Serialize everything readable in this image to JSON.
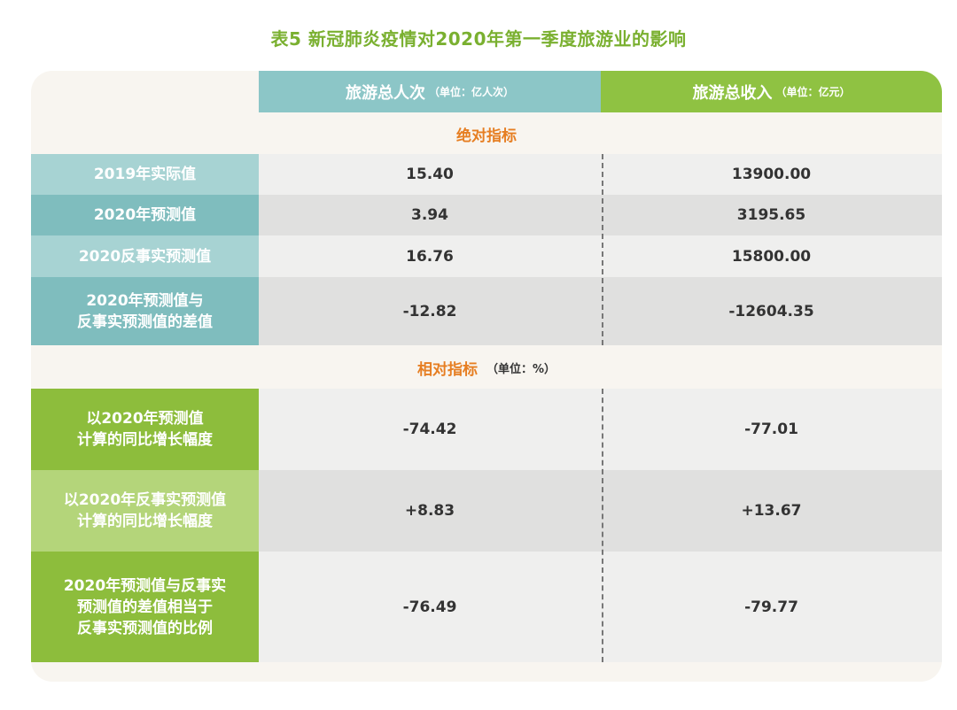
{
  "title": "表5 新冠肺炎疫情对2020年第一季度旅游业的影响",
  "header": {
    "col_a": "旅游总人次",
    "col_a_unit": "（单位：亿人次）",
    "col_b": "旅游总收入",
    "col_b_unit": "（单位：亿元）"
  },
  "absolute": {
    "title": "绝对指标",
    "rows": [
      {
        "label": "2019年实际值",
        "a": "15.40",
        "b": "13900.00"
      },
      {
        "label": "2020年预测值",
        "a": "3.94",
        "b": "3195.65"
      },
      {
        "label": "2020反事实预测值",
        "a": "16.76",
        "b": "15800.00"
      },
      {
        "label": "2020年预测值与\n反事实预测值的差值",
        "a": "-12.82",
        "b": "-12604.35"
      }
    ]
  },
  "relative": {
    "title": "相对指标",
    "unit": "（单位：%）",
    "rows": [
      {
        "label": "以2020年预测值\n计算的同比增长幅度",
        "a": "-74.42",
        "b": "-77.01"
      },
      {
        "label": "以2020年反事实预测值\n计算的同比增长幅度",
        "a": "+8.83",
        "b": "+13.67"
      },
      {
        "label": "2020年预测值与反事实\n预测值的差值相当于\n反事实预测值的比例",
        "a": "-76.49",
        "b": "-79.77"
      }
    ]
  },
  "colors": {
    "title": "#7ab030",
    "teal_header": "#8cc6c7",
    "green_header": "#8fc242",
    "section_title": "#e67e22"
  }
}
